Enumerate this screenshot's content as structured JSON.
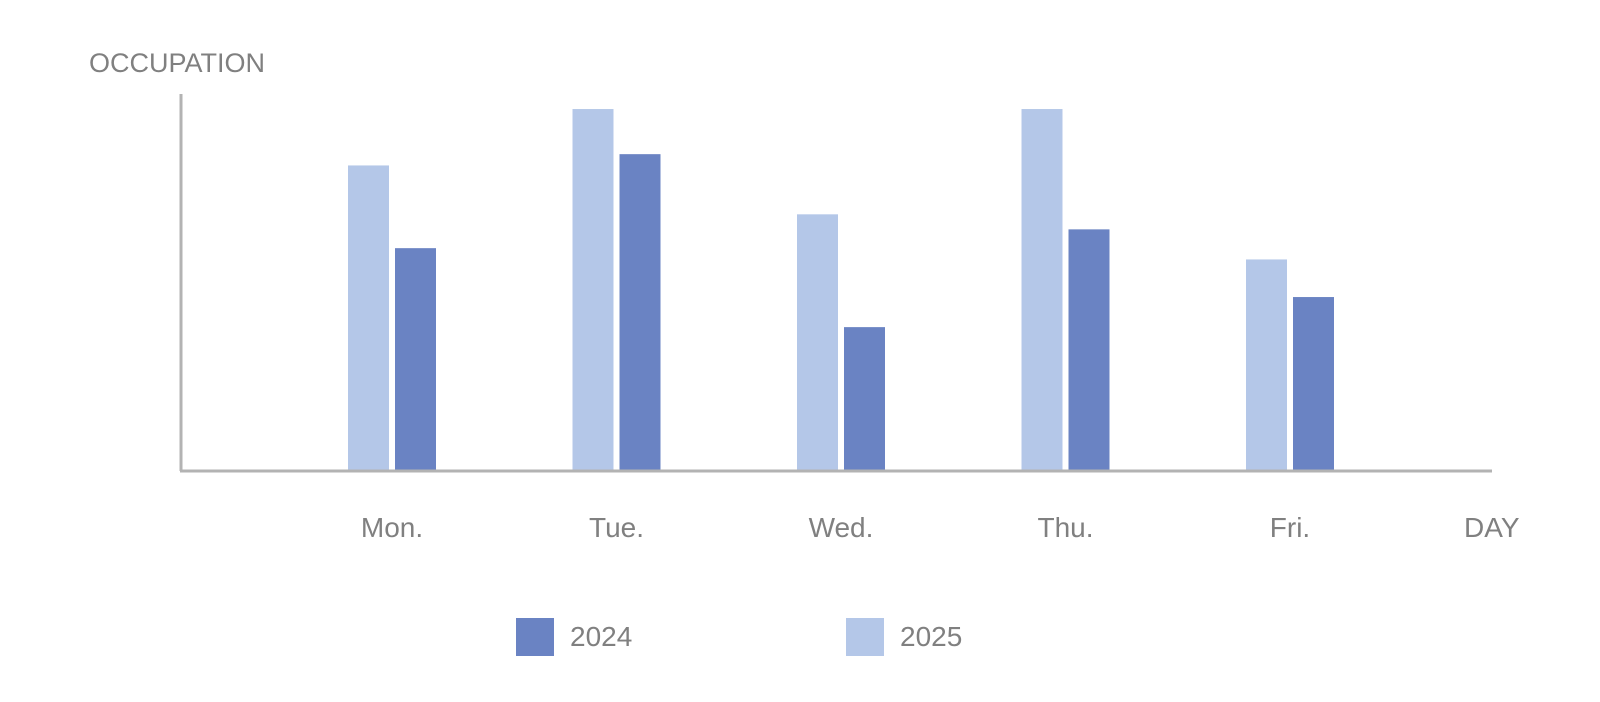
{
  "chart_data": {
    "type": "bar",
    "title": "",
    "ylabel": "OCCUPATION",
    "xlabel": "DAY",
    "categories": [
      "Mon.",
      "Tue.",
      "Wed.",
      "Thu.",
      "Fri."
    ],
    "series": [
      {
        "name": "2025",
        "color": "#b4c7e8",
        "values": [
          81,
          96,
          68,
          96,
          56
        ]
      },
      {
        "name": "2024",
        "color": "#6a83c3",
        "values": [
          59,
          84,
          38,
          64,
          46
        ]
      }
    ],
    "ylim": [
      0,
      100
    ],
    "grid": false,
    "legend_position": "bottom",
    "legend_order": [
      "2024",
      "2025"
    ]
  }
}
